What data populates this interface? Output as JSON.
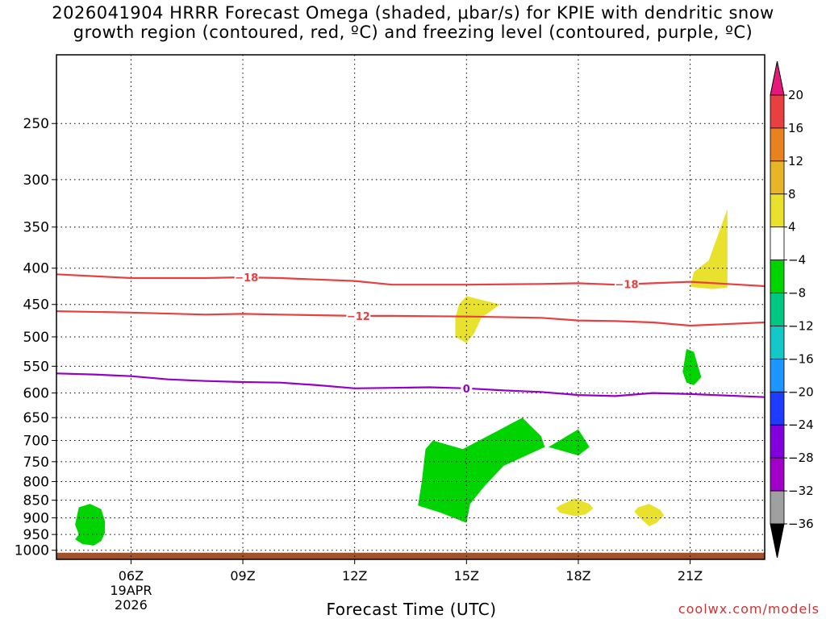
{
  "chart_data": {
    "type": "heatmap",
    "title": [
      "2026041904 HRRR Forecast Omega (shaded, μbar/s) for KPIE with dendritic snow",
      "growth region (contoured, red, ºC) and freezing level (contoured, purple, ºC)"
    ],
    "xlabel": "Forecast Time (UTC)",
    "ylabel": "",
    "credit": "coolwx.com/models",
    "x_hours_range": [
      4,
      23
    ],
    "y_pressure_range_hpa": [
      200,
      1030
    ],
    "x_ticks": [
      {
        "hour": 6,
        "label": "06Z",
        "date": "19APR",
        "year": "2026"
      },
      {
        "hour": 9,
        "label": "09Z"
      },
      {
        "hour": 12,
        "label": "12Z"
      },
      {
        "hour": 15,
        "label": "15Z"
      },
      {
        "hour": 18,
        "label": "18Z"
      },
      {
        "hour": 21,
        "label": "21Z"
      }
    ],
    "y_ticks": [
      250,
      300,
      350,
      400,
      450,
      500,
      550,
      600,
      650,
      700,
      750,
      800,
      850,
      900,
      950,
      1000
    ],
    "colorbar": {
      "labels": [
        "20",
        "16",
        "12",
        "8",
        "4",
        "−4",
        "−8",
        "−12",
        "−16",
        "−20",
        "−24",
        "−28",
        "−32",
        "−36"
      ],
      "colors": [
        "#e6197a",
        "#e84040",
        "#e8821e",
        "#e8b428",
        "#e8e12e",
        "#ffffff",
        "#00d400",
        "#00c882",
        "#14c8c8",
        "#1e96ff",
        "#1e3cff",
        "#8200dc",
        "#a000c8",
        "#a0a0a0",
        "#000000"
      ]
    },
    "contours": [
      {
        "name": "dgz_minus18",
        "label": "−18",
        "color": "#e84040",
        "points": [
          [
            4,
            408
          ],
          [
            6,
            413
          ],
          [
            8,
            413
          ],
          [
            9,
            412
          ],
          [
            10,
            413
          ],
          [
            12,
            417
          ],
          [
            13,
            422
          ],
          [
            15,
            422
          ],
          [
            17,
            421
          ],
          [
            18,
            420
          ],
          [
            19,
            422
          ],
          [
            20,
            420
          ],
          [
            21,
            418
          ],
          [
            22,
            424
          ]
        ],
        "label_hours": [
          9.1,
          19.3
        ]
      },
      {
        "name": "dgz_minus12",
        "label": "−12",
        "color": "#e84040",
        "points": [
          [
            4,
            460
          ],
          [
            6,
            462
          ],
          [
            8,
            465
          ],
          [
            9,
            464
          ],
          [
            10,
            465
          ],
          [
            12,
            467
          ],
          [
            13,
            467
          ],
          [
            15,
            468
          ],
          [
            17,
            470
          ],
          [
            18,
            474
          ],
          [
            19,
            475
          ],
          [
            20,
            477
          ],
          [
            21,
            482
          ],
          [
            22,
            477
          ]
        ],
        "label_hours": [
          12.1
        ]
      },
      {
        "name": "freezing_level_0",
        "label": "0",
        "color": "#9400c8",
        "points": [
          [
            4,
            563
          ],
          [
            5,
            565
          ],
          [
            6,
            568
          ],
          [
            7,
            574
          ],
          [
            8,
            577
          ],
          [
            9,
            579
          ],
          [
            10,
            580
          ],
          [
            11,
            585
          ],
          [
            12,
            591
          ],
          [
            13,
            590
          ],
          [
            14,
            589
          ],
          [
            15,
            591
          ],
          [
            16,
            595
          ],
          [
            17,
            598
          ],
          [
            18,
            604
          ],
          [
            19,
            606
          ],
          [
            20,
            600
          ],
          [
            21,
            602
          ],
          [
            22,
            608
          ]
        ],
        "label_hours": [
          15.0
        ]
      }
    ],
    "shaded_regions": [
      {
        "category": "-4 to -8",
        "color": "#00d400",
        "points": [
          [
            4.6,
            870
          ],
          [
            4.9,
            860
          ],
          [
            5.2,
            875
          ],
          [
            5.3,
            910
          ],
          [
            5.3,
            945
          ],
          [
            5.2,
            970
          ],
          [
            5.0,
            985
          ],
          [
            4.7,
            980
          ],
          [
            4.5,
            965
          ],
          [
            4.6,
            950
          ],
          [
            4.5,
            920
          ]
        ]
      },
      {
        "category": "-4 to -8",
        "color": "#00d400",
        "points": [
          [
            14.1,
            700
          ],
          [
            14.9,
            720
          ],
          [
            15.8,
            680
          ],
          [
            16.5,
            650
          ],
          [
            17.0,
            690
          ],
          [
            17.1,
            715
          ],
          [
            16.0,
            760
          ],
          [
            15.5,
            810
          ],
          [
            15.1,
            860
          ],
          [
            15.0,
            915
          ],
          [
            14.3,
            885
          ],
          [
            13.7,
            865
          ],
          [
            13.8,
            800
          ],
          [
            13.9,
            720
          ]
        ]
      },
      {
        "category": "-4 to -8",
        "color": "#00d400",
        "points": [
          [
            17.2,
            715
          ],
          [
            18.0,
            675
          ],
          [
            18.3,
            715
          ],
          [
            18.0,
            735
          ],
          [
            17.6,
            725
          ]
        ]
      },
      {
        "category": "-4 to -8",
        "color": "#00d400",
        "points": [
          [
            20.9,
            520
          ],
          [
            21.1,
            525
          ],
          [
            21.3,
            570
          ],
          [
            21.1,
            585
          ],
          [
            20.9,
            580
          ],
          [
            20.8,
            560
          ]
        ]
      },
      {
        "category": "4 to 8",
        "color": "#e8e12e",
        "points": [
          [
            14.8,
            450
          ],
          [
            15.0,
            438
          ],
          [
            15.9,
            450
          ],
          [
            15.4,
            470
          ],
          [
            15.2,
            495
          ],
          [
            15.0,
            510
          ],
          [
            14.7,
            500
          ],
          [
            14.7,
            470
          ]
        ]
      },
      {
        "category": "4 to 8",
        "color": "#e8e12e",
        "points": [
          [
            21.1,
            405
          ],
          [
            21.5,
            390
          ],
          [
            22.0,
            330
          ],
          [
            22.0,
            426
          ],
          [
            21.6,
            428
          ],
          [
            21.0,
            425
          ]
        ]
      },
      {
        "category": "4 to 8",
        "color": "#e8e12e",
        "points": [
          [
            17.5,
            865
          ],
          [
            17.9,
            845
          ],
          [
            18.3,
            860
          ],
          [
            18.4,
            873
          ],
          [
            18.2,
            890
          ],
          [
            17.9,
            895
          ],
          [
            17.5,
            885
          ],
          [
            17.4,
            872
          ]
        ]
      },
      {
        "category": "4 to 8",
        "color": "#e8e12e",
        "points": [
          [
            19.6,
            870
          ],
          [
            19.9,
            860
          ],
          [
            20.2,
            877
          ],
          [
            20.3,
            893
          ],
          [
            20.1,
            915
          ],
          [
            19.9,
            925
          ],
          [
            19.7,
            905
          ],
          [
            19.5,
            882
          ]
        ]
      }
    ],
    "ground_color": "#a0522d"
  }
}
